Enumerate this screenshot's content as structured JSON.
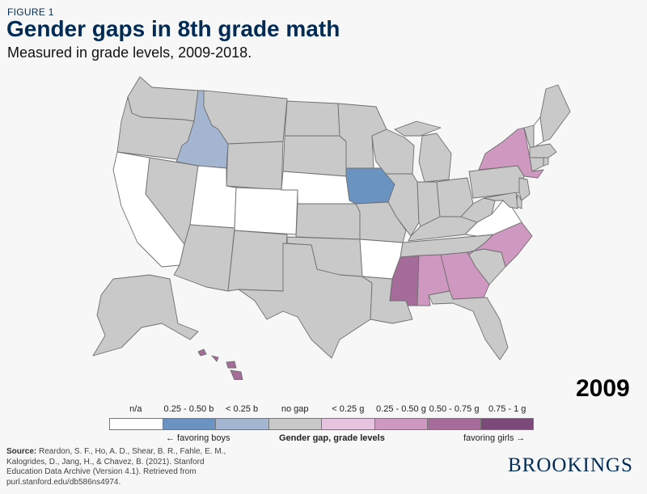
{
  "header": {
    "figure_label": "FIGURE 1",
    "title": "Gender gaps in 8th grade math",
    "subtitle": "Measured in grade levels, 2009-2018."
  },
  "year": "2009",
  "colors": {
    "na": "#ffffff",
    "boys_high": "#6b93c2",
    "boys_low": "#a3b5d1",
    "no_gap": "#c9c9c9",
    "girls_low": "#e6c4df",
    "girls_mid": "#cf98c0",
    "girls_high": "#a56c99",
    "girls_max": "#7c4a79"
  },
  "legend": {
    "bins": [
      {
        "label": "n/a",
        "color": "#ffffff"
      },
      {
        "label": "0.25 - 0.50 b",
        "color": "#6b93c2"
      },
      {
        "label": "< 0.25 b",
        "color": "#a3b5d1"
      },
      {
        "label": "no gap",
        "color": "#c9c9c9"
      },
      {
        "label": "< 0.25 g",
        "color": "#e6c4df"
      },
      {
        "label": "0.25 - 0.50 g",
        "color": "#cf98c0"
      },
      {
        "label": "0.50 - 0.75 g",
        "color": "#a56c99"
      },
      {
        "label": "0.75 - 1 g",
        "color": "#7c4a79"
      }
    ],
    "left_note": "← favoring boys",
    "center_note": "Gender gap, grade levels",
    "right_note": "favoring girls →"
  },
  "states": {
    "CA": "na",
    "NV": "no_gap",
    "OR": "no_gap",
    "WA": "no_gap",
    "ID": "boys_low",
    "MT": "no_gap",
    "WY": "no_gap",
    "UT": "na",
    "CO": "na",
    "AZ": "no_gap",
    "NM": "no_gap",
    "ND": "no_gap",
    "SD": "no_gap",
    "NE": "na",
    "KS": "no_gap",
    "OK": "no_gap",
    "TX": "no_gap",
    "MN": "no_gap",
    "IA": "boys_high",
    "MO": "no_gap",
    "AR": "na",
    "LA": "no_gap",
    "WI": "no_gap",
    "IL": "no_gap",
    "MI": "no_gap",
    "IN": "no_gap",
    "OH": "no_gap",
    "KY": "no_gap",
    "TN": "no_gap",
    "MS": "girls_high",
    "AL": "girls_mid",
    "GA": "girls_mid",
    "FL": "no_gap",
    "SC": "no_gap",
    "NC": "girls_mid",
    "VA": "na",
    "WV": "no_gap",
    "PA": "no_gap",
    "NY": "girls_mid",
    "VT": "no_gap",
    "NH": "na",
    "ME": "no_gap",
    "MA": "no_gap",
    "CT": "no_gap",
    "RI": "no_gap",
    "NJ": "no_gap",
    "DE": "no_gap",
    "MD": "no_gap",
    "AK": "no_gap",
    "HI": "girls_high"
  },
  "source": {
    "label": "Source:",
    "text": "Reardon, S. F., Ho, A. D., Shear, B. R., Fahle, E. M., Kalogrides, D., Jang, H., & Chavez, B. (2021). Stanford Education Data Archive (Version 4.1). Retrieved from purl.stanford.edu/db586ns4974."
  },
  "brand": "BROOKINGS"
}
